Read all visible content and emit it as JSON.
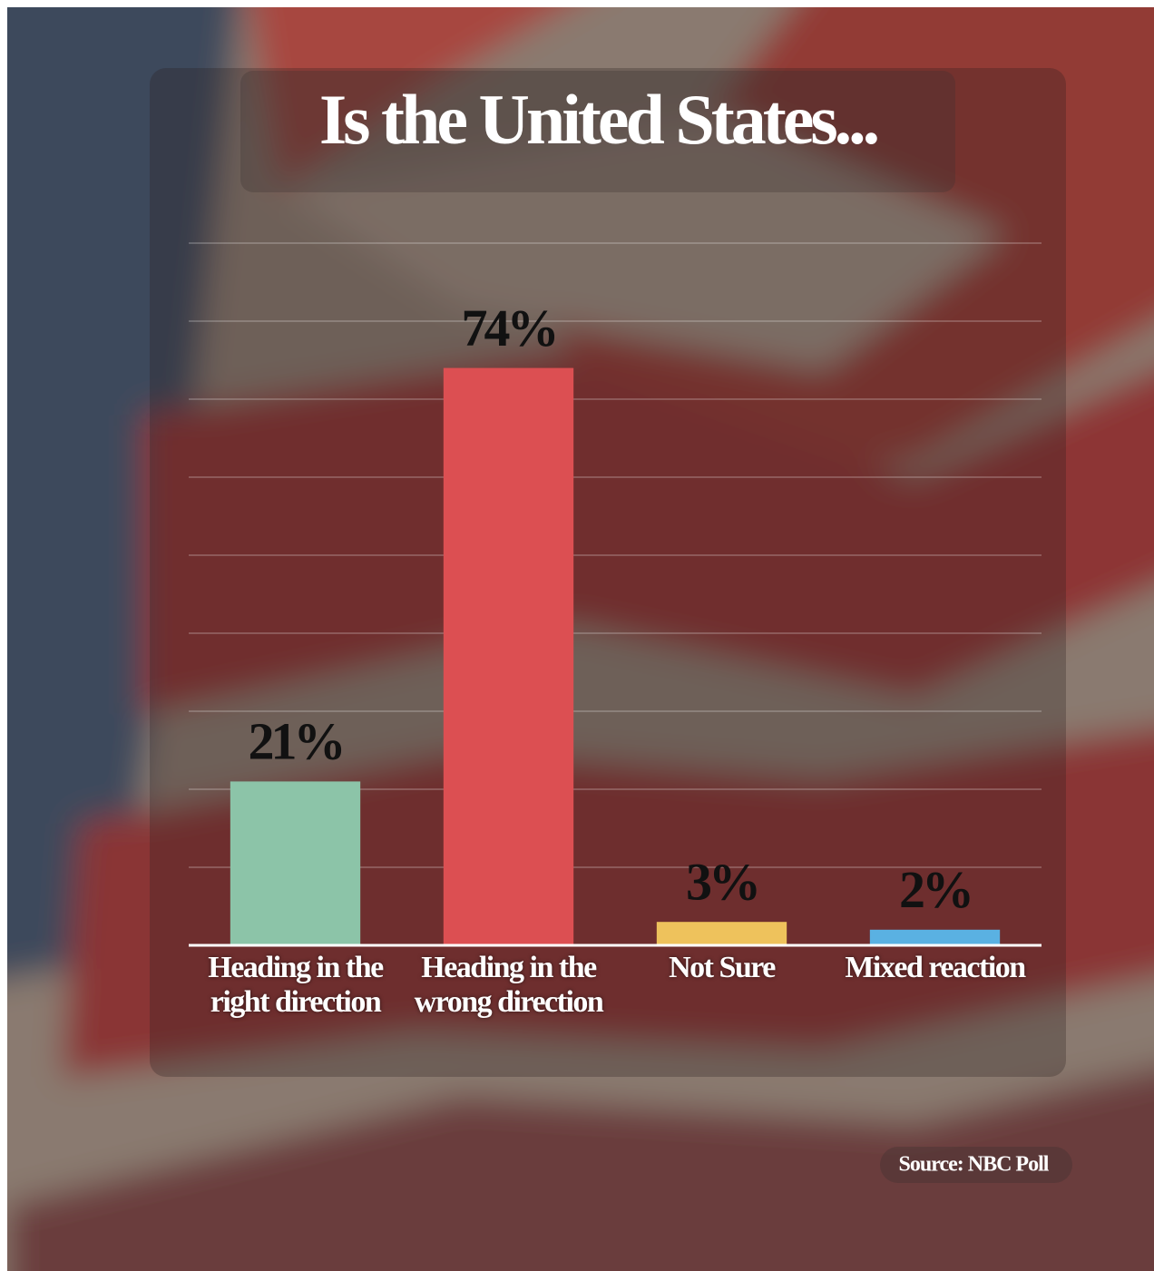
{
  "chart_data": {
    "type": "bar",
    "title": "Is the United States...",
    "categories": [
      "Heading in the right direction",
      "Heading in the wrong direction",
      "Not Sure",
      "Mixed reaction"
    ],
    "values": [
      21,
      74,
      3,
      2
    ],
    "value_labels": [
      "21%",
      "74%",
      "3%",
      "2%"
    ],
    "colors": [
      "#8cc4a8",
      "#dc4f52",
      "#eec25c",
      "#5ab1e2"
    ],
    "ylim": [
      0,
      90
    ],
    "yticks": [
      10,
      20,
      30,
      40,
      50,
      60,
      70,
      80,
      90
    ],
    "grid": true,
    "source": "Source: NBC Poll"
  }
}
